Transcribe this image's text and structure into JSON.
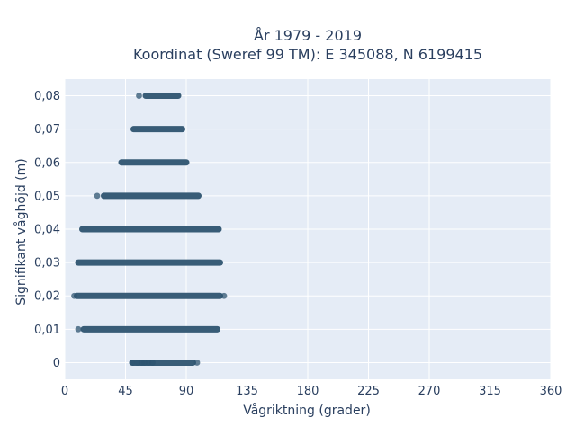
{
  "chart_data": {
    "type": "scatter",
    "title_line1": "År 1979 - 2019",
    "title_line2": "Koordinat (Sweref 99 TM): E 345088, N 6199415",
    "xlabel": "Vågriktning (grader)",
    "ylabel": "Signifikant våghöjd (m)",
    "xlim": [
      0,
      360
    ],
    "ylim": [
      -0.005,
      0.085
    ],
    "x_ticks": [
      0,
      45,
      90,
      135,
      180,
      225,
      270,
      315,
      360
    ],
    "x_tick_labels": [
      "0",
      "45",
      "90",
      "135",
      "180",
      "225",
      "270",
      "315",
      "360"
    ],
    "y_ticks": [
      0,
      0.01,
      0.02,
      0.03,
      0.04,
      0.05,
      0.06,
      0.07,
      0.08
    ],
    "y_tick_labels": [
      "0",
      "0,01",
      "0,02",
      "0,03",
      "0,04",
      "0,05",
      "0,06",
      "0,07",
      "0,08"
    ],
    "grid": true,
    "marker_color": "#2e5470",
    "plot_bg": "#e5ecf6",
    "bands": [
      {
        "y": 0.0,
        "x_min": 50,
        "x_max": 95,
        "outliers": [
          50,
          54,
          57,
          59,
          62,
          65,
          98
        ]
      },
      {
        "y": 0.01,
        "x_min": 14,
        "x_max": 113,
        "outliers": [
          10
        ]
      },
      {
        "y": 0.02,
        "x_min": 9,
        "x_max": 115,
        "outliers": [
          7,
          118
        ]
      },
      {
        "y": 0.03,
        "x_min": 10,
        "x_max": 115,
        "outliers": []
      },
      {
        "y": 0.04,
        "x_min": 13,
        "x_max": 114,
        "outliers": []
      },
      {
        "y": 0.05,
        "x_min": 29,
        "x_max": 99,
        "outliers": [
          24
        ]
      },
      {
        "y": 0.06,
        "x_min": 42,
        "x_max": 90,
        "outliers": []
      },
      {
        "y": 0.07,
        "x_min": 51,
        "x_max": 87,
        "outliers": []
      },
      {
        "y": 0.08,
        "x_min": 60,
        "x_max": 84,
        "outliers": [
          55
        ]
      }
    ]
  }
}
